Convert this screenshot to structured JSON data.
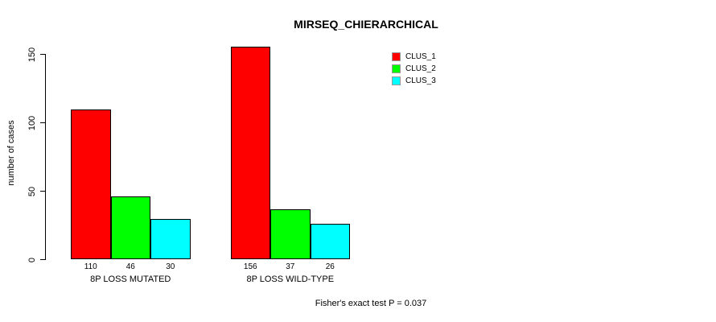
{
  "chart_data": {
    "type": "bar",
    "title": "MIRSEQ_CHIERARCHICAL",
    "ylabel": "number of cases",
    "xlabel": "",
    "yticks": [
      0,
      50,
      100,
      150
    ],
    "ylim": [
      0,
      160
    ],
    "grid": false,
    "legend_position": "top-right",
    "categories": [
      "8P LOSS MUTATED",
      "8P LOSS WILD-TYPE"
    ],
    "series": [
      {
        "name": "CLUS_1",
        "color": "#FF0000",
        "values": [
          110,
          156
        ]
      },
      {
        "name": "CLUS_2",
        "color": "#00FF00",
        "values": [
          46,
          37
        ]
      },
      {
        "name": "CLUS_3",
        "color": "#00FFFF",
        "values": [
          30,
          26
        ]
      }
    ],
    "footnote": "Fisher's exact test P = 0.037",
    "axis_color": "#000000",
    "bar_border_color": "#000000"
  }
}
